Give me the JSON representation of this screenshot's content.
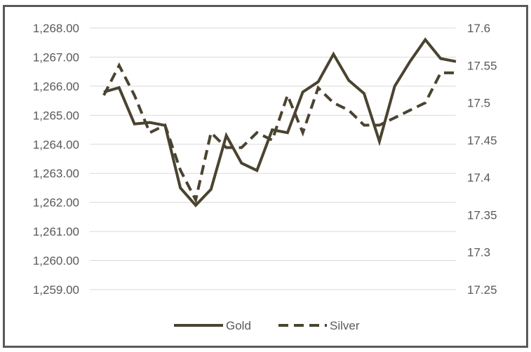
{
  "chart_data": {
    "type": "line",
    "title": "",
    "xlabel": "",
    "ylabel": "",
    "grid": true,
    "legend_position": "bottom",
    "y_left": {
      "min": 1259,
      "max": 1268,
      "ticks": [
        "1,268.00",
        "1,267.00",
        "1,266.00",
        "1,265.00",
        "1,264.00",
        "1,263.00",
        "1,262.00",
        "1,261.00",
        "1,260.00",
        "1,259.00"
      ]
    },
    "y_right": {
      "min": 17.25,
      "max": 17.6,
      "ticks": [
        "17.6",
        "17.55",
        "17.5",
        "17.45",
        "17.4",
        "17.35",
        "17.3",
        "17.25"
      ]
    },
    "series": [
      {
        "name": "Gold",
        "axis": "left",
        "style": "solid",
        "color": "#4a4330",
        "values": [
          1265.8,
          1265.95,
          1264.7,
          1264.75,
          1264.65,
          1262.5,
          1261.9,
          1262.45,
          1264.3,
          1263.35,
          1263.1,
          1264.5,
          1264.4,
          1265.8,
          1266.15,
          1267.1,
          1266.2,
          1265.75,
          1264.1,
          1266.0,
          1266.85,
          1267.6,
          1266.95,
          1266.85
        ]
      },
      {
        "name": "Silver",
        "axis": "right",
        "style": "dashed",
        "color": "#4a4330",
        "values": [
          17.51,
          17.55,
          17.51,
          17.46,
          17.47,
          17.41,
          17.37,
          17.46,
          17.44,
          17.44,
          17.46,
          17.45,
          17.51,
          17.46,
          17.52,
          17.5,
          17.49,
          17.47,
          17.47,
          17.48,
          17.49,
          17.5,
          17.54,
          17.54
        ]
      }
    ]
  }
}
